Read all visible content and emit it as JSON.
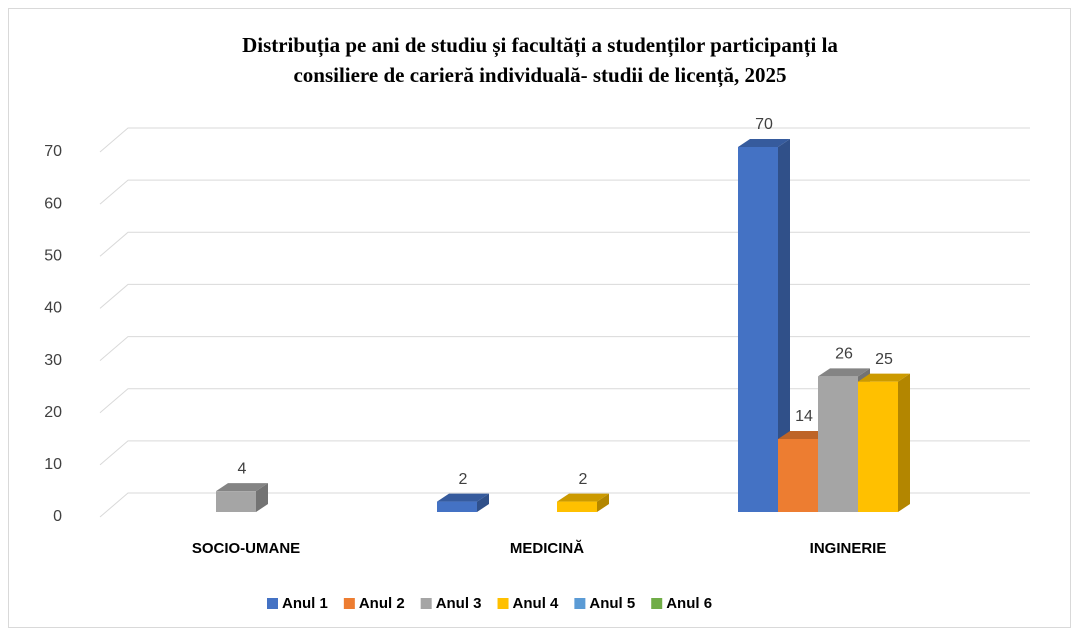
{
  "chart_data": {
    "type": "bar3d",
    "title": [
      "Distribuția pe ani de studiu și facultăți a studenților participanți la",
      "consiliere de carieră individuală- studii de licență, 2025"
    ],
    "categories": [
      "SOCIO-UMANE",
      "MEDICINĂ",
      "INGINERIE"
    ],
    "series": [
      {
        "name": "Anul 1",
        "color": "#4472c4",
        "values": [
          null,
          2,
          70
        ]
      },
      {
        "name": "Anul 2",
        "color": "#ed7d31",
        "values": [
          null,
          null,
          14
        ]
      },
      {
        "name": "Anul 3",
        "color": "#a5a5a5",
        "values": [
          4,
          null,
          26
        ]
      },
      {
        "name": "Anul 4",
        "color": "#ffc000",
        "values": [
          null,
          2,
          25
        ]
      },
      {
        "name": "Anul 5",
        "color": "#5b9bd5",
        "values": [
          null,
          null,
          null
        ]
      },
      {
        "name": "Anul 6",
        "color": "#70ad47",
        "values": [
          null,
          null,
          null
        ]
      }
    ],
    "ylim": [
      0,
      70
    ],
    "yticks": [
      0,
      10,
      20,
      30,
      40,
      50,
      60,
      70
    ],
    "grid": true,
    "legend": "bottom"
  }
}
